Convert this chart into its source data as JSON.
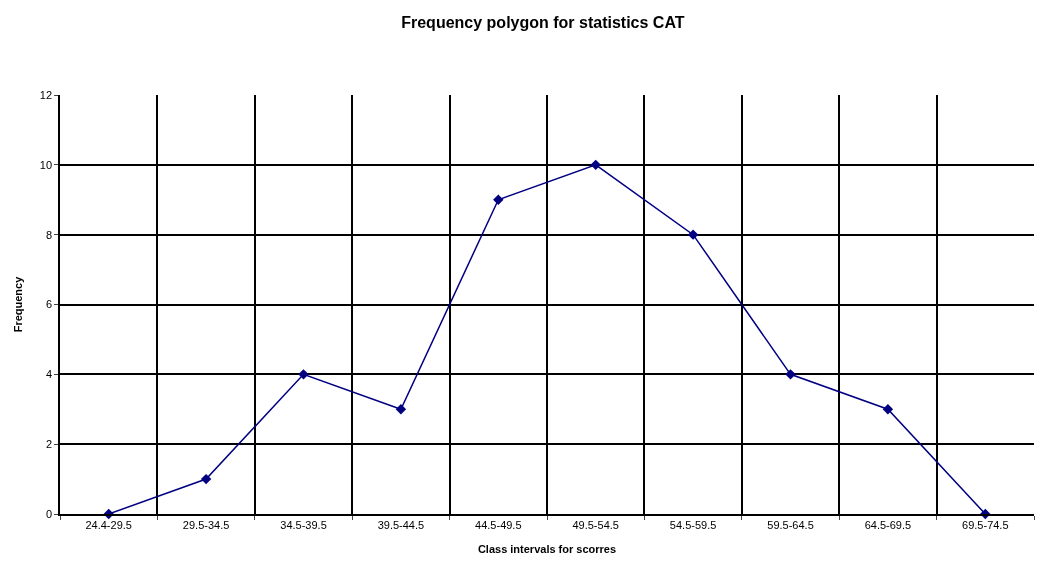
{
  "chart_data": {
    "type": "line",
    "title": "Frequency polygon for statistics CAT",
    "xlabel": "Class intervals for scorres",
    "ylabel": "Frequency",
    "categories": [
      "24.4-29.5",
      "29.5-34.5",
      "34.5-39.5",
      "39.5-44.5",
      "44.5-49.5",
      "49.5-54.5",
      "54.5-59.5",
      "59.5-64.5",
      "64.5-69.5",
      "69.5-74.5"
    ],
    "series": [
      {
        "color": "#000080",
        "values": [
          0,
          1,
          4,
          3,
          9,
          10,
          8,
          4,
          3,
          0
        ]
      }
    ],
    "ylim": [
      0,
      12
    ],
    "yticks": [
      0,
      2,
      4,
      6,
      8,
      10,
      12
    ],
    "grid": true,
    "marker": "diamond",
    "line_style": "solid",
    "legend": false
  }
}
